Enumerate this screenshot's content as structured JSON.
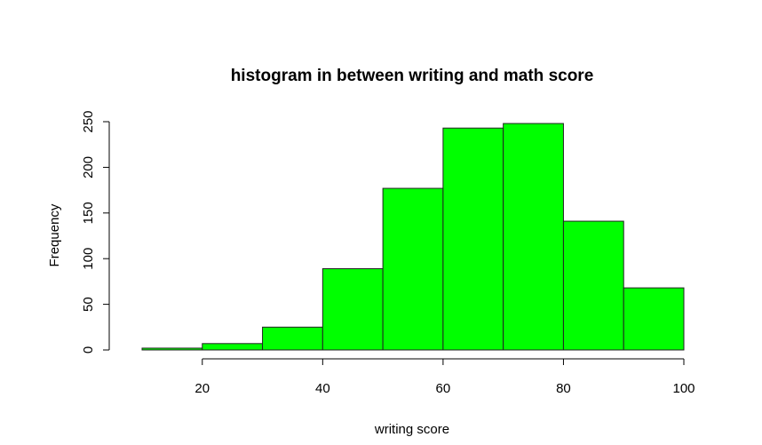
{
  "chart_data": {
    "type": "bar",
    "title": "histogram in between writing and math score",
    "xlabel": "writing score",
    "ylabel": "Frequency",
    "bin_edges": [
      10,
      20,
      30,
      40,
      50,
      60,
      70,
      80,
      90,
      100
    ],
    "values": [
      2,
      7,
      25,
      89,
      177,
      243,
      248,
      141,
      68
    ],
    "xlim": [
      10,
      100
    ],
    "ylim": [
      0,
      250
    ],
    "xticks": [
      20,
      40,
      60,
      80,
      100
    ],
    "yticks": [
      0,
      50,
      100,
      150,
      200,
      250
    ],
    "bar_color": "#00ff00",
    "grid": false
  }
}
